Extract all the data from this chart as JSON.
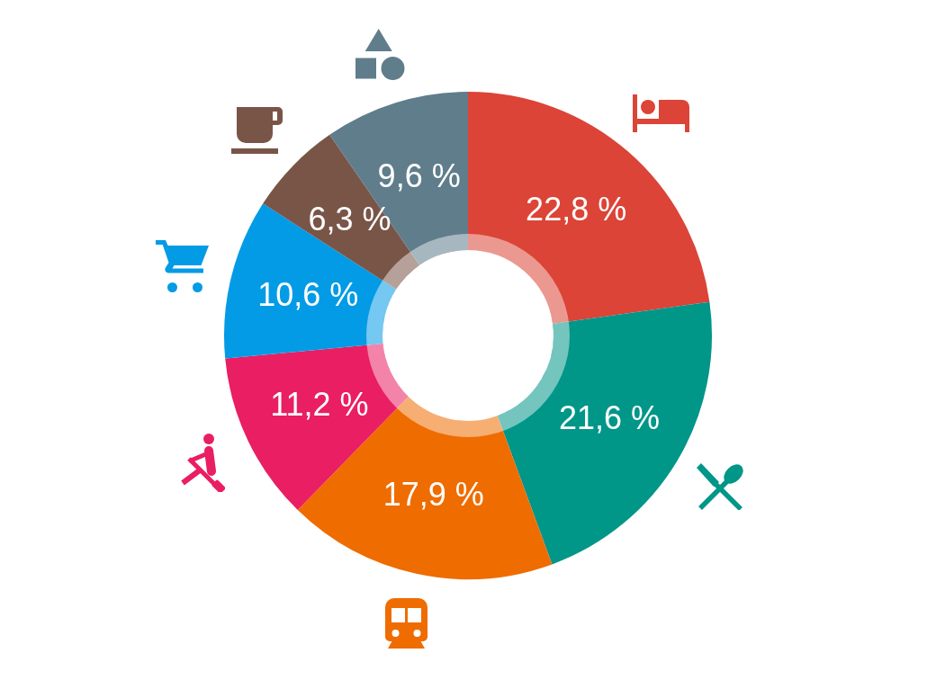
{
  "chart_data": {
    "type": "donut",
    "categories": [
      null,
      null,
      null,
      null,
      null,
      null,
      null
    ],
    "values": [
      22.8,
      21.6,
      17.9,
      11.2,
      10.6,
      6.3,
      9.6
    ],
    "colors": [
      "#db4437",
      "#009688",
      "#ef6c00",
      "#e91e63",
      "#039be5",
      "#795548",
      "#607d8b"
    ],
    "value_labels": [
      "22,8 %",
      "21,6 %",
      "17,9 %",
      "11,2 %",
      "10,6 %",
      "6,3 %",
      "9,6 %"
    ]
  }
}
